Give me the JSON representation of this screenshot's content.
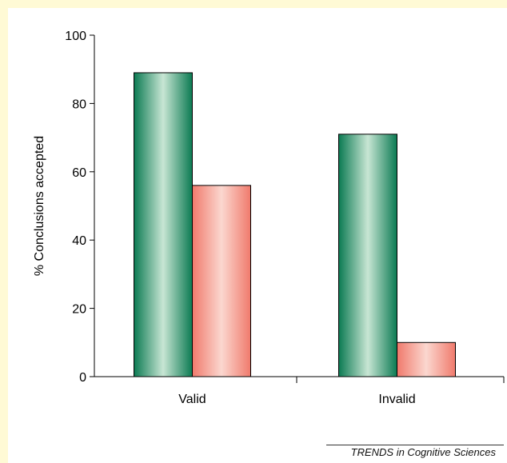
{
  "chart_data": {
    "type": "bar",
    "categories": [
      "Valid",
      "Invalid"
    ],
    "series": [
      {
        "values": [
          89,
          71
        ],
        "color": "#1e8f63"
      },
      {
        "values": [
          56,
          10
        ],
        "color": "#f08a7c"
      }
    ],
    "title": "",
    "xlabel": "",
    "ylabel": "% Conclusions accepted",
    "ylim": [
      0,
      100
    ],
    "yticks": [
      0,
      20,
      40,
      60,
      80,
      100
    ],
    "grid": false
  },
  "credit": "TRENDS in Cognitive Sciences",
  "colors": {
    "background": "#fffad5",
    "panel": "#ffffff"
  }
}
